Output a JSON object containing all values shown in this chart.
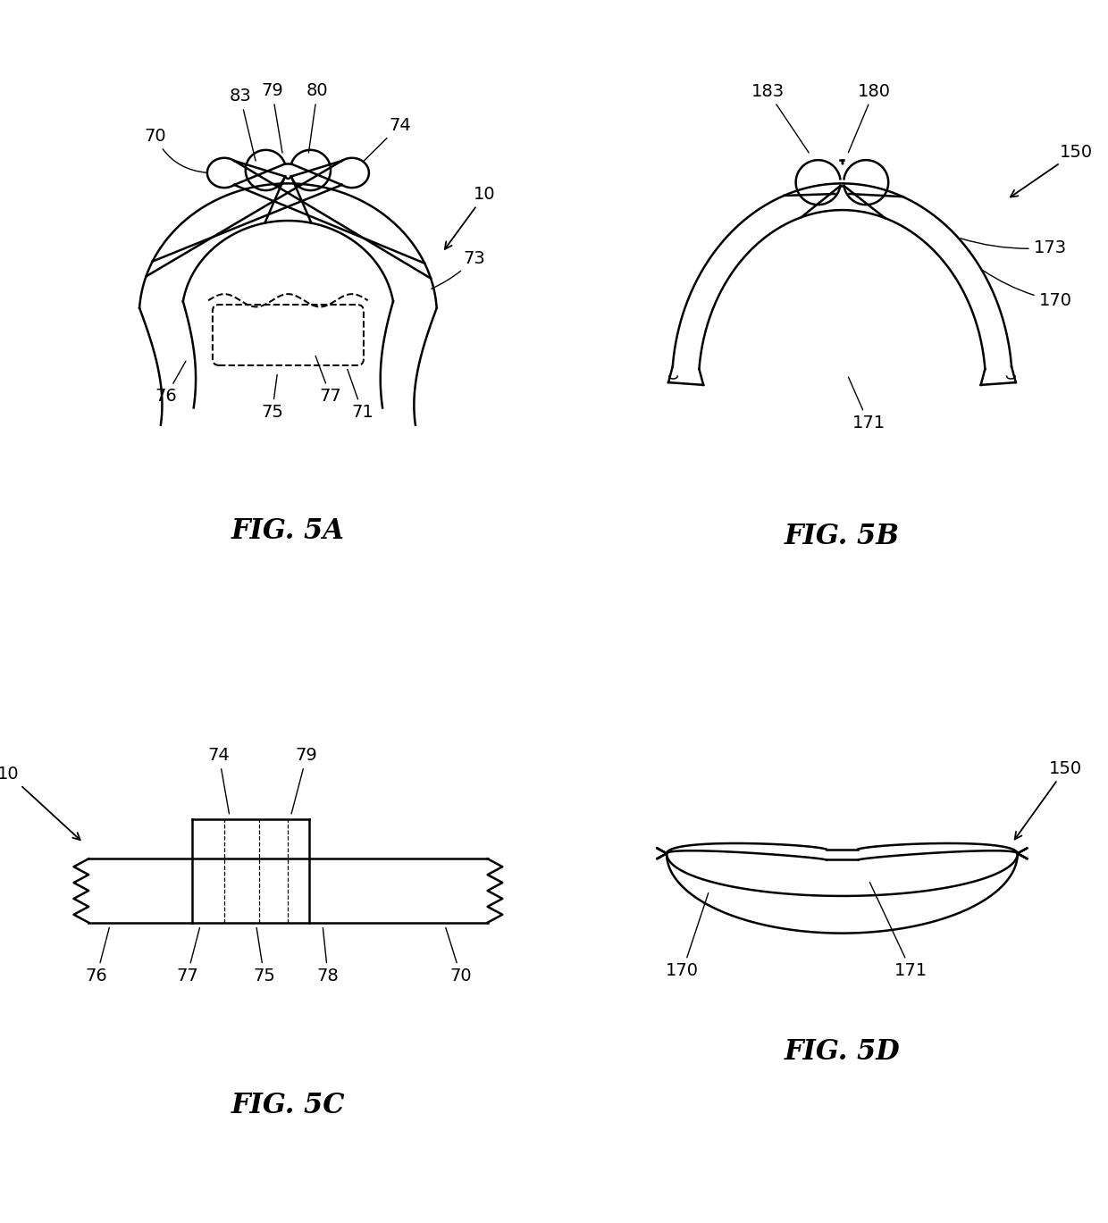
{
  "bg_color": "#ffffff",
  "line_color": "#000000",
  "label_fontsize": 14,
  "title_fontsize": 22,
  "fig5a_title": "FIG. 5A",
  "fig5b_title": "FIG. 5B",
  "fig5c_title": "FIG. 5C",
  "fig5d_title": "FIG. 5D"
}
